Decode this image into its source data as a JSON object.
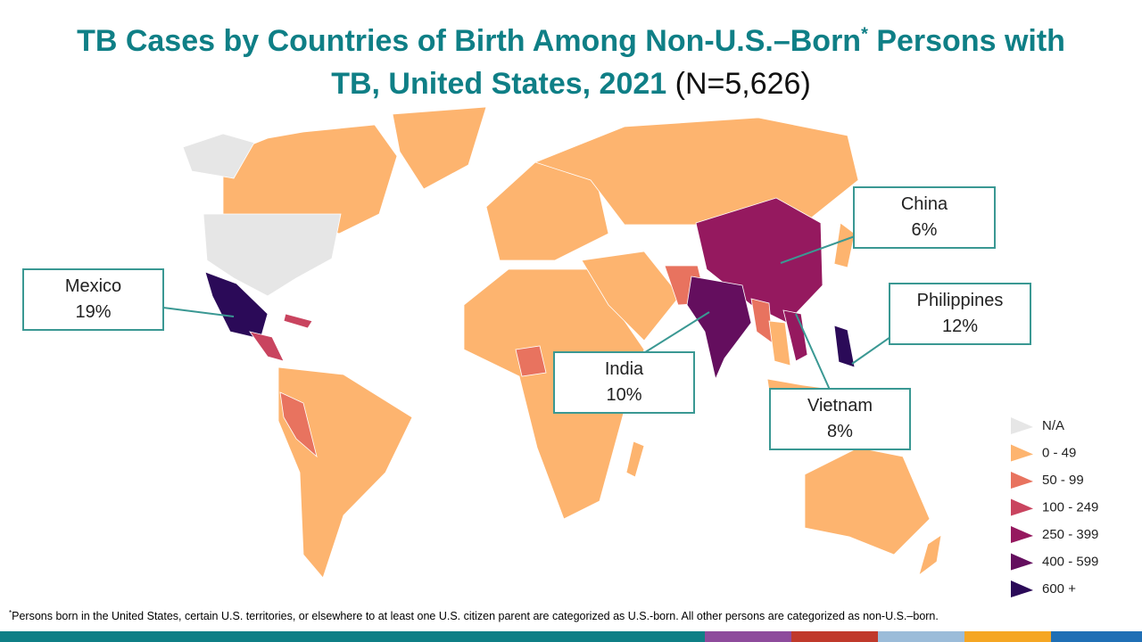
{
  "title": {
    "line1": "TB Cases by Countries of Birth Among Non-U.S.–Born",
    "mark": "*",
    "line1_end": " Persons with",
    "line2": "TB, United States, 2021",
    "count": "(N=5,626)"
  },
  "callouts": [
    {
      "country": "Mexico",
      "share": "19%"
    },
    {
      "country": "China",
      "share": "6%"
    },
    {
      "country": "Philippines",
      "share": "12%"
    },
    {
      "country": "India",
      "share": "10%"
    },
    {
      "country": "Vietnam",
      "share": "8%"
    }
  ],
  "legend": [
    {
      "label": "N/A",
      "color": "#e6e6e6"
    },
    {
      "label": "0 - 49",
      "color": "#fdb46f"
    },
    {
      "label": "50 - 99",
      "color": "#e8735f"
    },
    {
      "label": "100 - 249",
      "color": "#c9445f"
    },
    {
      "label": "250 - 399",
      "color": "#95195f"
    },
    {
      "label": "400 - 599",
      "color": "#640e5e"
    },
    {
      "label": "600 +",
      "color": "#2b0a58"
    }
  ],
  "footnote": {
    "mark": "*",
    "text": "Persons born in the United States, certain U.S. territories, or elsewhere to at least one U.S. citizen parent are categorized as U.S.-born. All other persons are categorized as non-U.S.–born."
  }
}
